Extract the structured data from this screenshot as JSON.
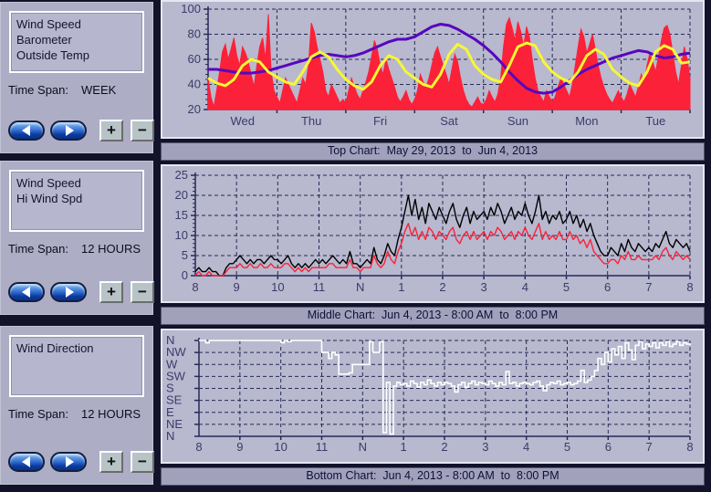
{
  "controls": {
    "plus": "+",
    "minus": "−"
  },
  "panels": [
    {
      "items": [
        "Wind Speed",
        "Barometer",
        "Outside Temp"
      ],
      "time_span_label": "Time Span:",
      "time_span": "WEEK"
    },
    {
      "items": [
        "Wind Speed",
        "Hi Wind Spd"
      ],
      "time_span_label": "Time Span:",
      "time_span": "12 HOURS"
    },
    {
      "items": [
        "Wind Direction"
      ],
      "time_span_label": "Time Span:",
      "time_span": "12 HOURS"
    }
  ],
  "captions": {
    "top": "Top Chart:  May 29, 2013  to  Jun 4, 2013",
    "middle": "Middle Chart:  Jun 4, 2013 - 8:00 AM  to  8:00 PM",
    "bottom": "Bottom Chart:  Jun 4, 2013 - 8:00 AM  to  8:00 PM"
  },
  "colors": {
    "wind_fill": "#fb2138",
    "barometer": "#5806be",
    "outside_temp": "#f7f735",
    "hi_wind": "#000000",
    "wind_line": "#fb2138",
    "wind_direction": "#ffffff",
    "grid": "#29295a",
    "tick_text": "#3b3b6b"
  },
  "chart_data": [
    {
      "type": "area",
      "title": "Top Chart: May 29, 2013 to Jun 4, 2013",
      "x_labels": [
        "Wed",
        "Thu",
        "Fri",
        "Sat",
        "Sun",
        "Mon",
        "Tue"
      ],
      "ylim": [
        20,
        100
      ],
      "y_ticks": [
        20,
        40,
        60,
        80,
        100
      ],
      "y_tick_labels": [
        "20",
        "40",
        "60",
        "80",
        "100"
      ],
      "grid": true,
      "series": [
        {
          "name": "Wind Speed",
          "type": "area",
          "color": "#fb2138",
          "values": [
            45,
            30,
            22,
            35,
            50,
            66,
            72,
            60,
            68,
            77,
            63,
            55,
            70,
            65,
            58,
            48,
            38,
            55,
            70,
            77,
            60,
            96,
            50,
            35,
            30,
            25,
            35,
            45,
            40,
            35,
            30,
            25,
            35,
            45,
            40,
            55,
            89,
            82,
            70,
            60,
            50,
            35,
            30,
            40,
            35,
            30,
            25,
            28,
            25,
            35,
            45,
            38,
            32,
            28,
            35,
            42,
            50,
            62,
            75,
            68,
            55,
            48,
            60,
            52,
            45,
            38,
            30,
            26,
            30,
            35,
            28,
            24,
            28,
            35,
            48,
            42,
            38,
            45,
            55,
            65,
            70,
            62,
            55,
            48,
            40,
            52,
            64,
            58,
            45,
            35,
            28,
            24,
            22,
            26,
            30,
            25,
            24,
            28,
            35,
            30,
            26,
            32,
            45,
            70,
            88,
            93,
            85,
            75,
            90,
            82,
            70,
            86,
            78,
            60,
            45,
            35,
            30,
            26,
            35,
            30,
            26,
            30,
            38,
            45,
            40,
            35,
            30,
            40,
            55,
            70,
            84,
            78,
            65,
            72,
            80,
            68,
            55,
            45,
            38,
            32,
            28,
            25,
            30,
            35,
            30,
            26,
            32,
            40,
            35,
            30,
            38,
            48,
            42,
            55,
            65,
            58,
            50,
            62,
            75,
            85,
            87,
            80,
            65,
            50,
            40,
            55,
            70,
            60,
            45
          ]
        },
        {
          "name": "Barometer",
          "type": "line",
          "color": "#5806be",
          "width": 3,
          "values": [
            52,
            52,
            51,
            50,
            49,
            49,
            50,
            51,
            53,
            55,
            57,
            59,
            61,
            63,
            64,
            63,
            62,
            63,
            65,
            68,
            71,
            74,
            76,
            76,
            78,
            82,
            86,
            88,
            87,
            84,
            80,
            76,
            71,
            65,
            58,
            50,
            43,
            37,
            34,
            33,
            34,
            38,
            43,
            48,
            52,
            55,
            58,
            61,
            63,
            65,
            67,
            66,
            63,
            61,
            62,
            64,
            65
          ]
        },
        {
          "name": "Outside Temp",
          "type": "line",
          "color": "#f7f735",
          "width": 3,
          "values": [
            45,
            41,
            39,
            44,
            55,
            60,
            58,
            50,
            46,
            42,
            40,
            50,
            62,
            66,
            62,
            52,
            44,
            39,
            36,
            42,
            55,
            63,
            60,
            50,
            45,
            40,
            38,
            48,
            64,
            72,
            68,
            55,
            48,
            44,
            42,
            55,
            70,
            73,
            71,
            58,
            50,
            45,
            42,
            50,
            63,
            68,
            64,
            52,
            46,
            41,
            39,
            50,
            66,
            71,
            68,
            57,
            58
          ]
        }
      ]
    },
    {
      "type": "line",
      "title": "Middle Chart: Jun 4, 2013 - 8:00 AM to 8:00 PM",
      "x_labels": [
        "8",
        "9",
        "10",
        "11",
        "N",
        "1",
        "2",
        "3",
        "4",
        "5",
        "6",
        "7",
        "8"
      ],
      "ylim": [
        0,
        25
      ],
      "y_ticks": [
        0,
        5,
        10,
        15,
        20,
        25
      ],
      "y_tick_labels": [
        "0",
        "5",
        "10",
        "15",
        "20",
        "25"
      ],
      "grid": true,
      "series": [
        {
          "name": "Hi Wind Spd",
          "type": "line",
          "color": "#000000",
          "width": 1.4,
          "values": [
            1,
            2,
            1,
            1,
            2,
            1,
            1,
            0,
            0,
            2,
            3,
            3,
            4,
            5,
            4,
            3,
            4,
            3,
            4,
            4,
            3,
            4,
            5,
            4,
            4,
            3,
            4,
            5,
            3,
            2,
            3,
            2,
            3,
            2,
            3,
            4,
            3,
            4,
            3,
            4,
            5,
            4,
            3,
            4,
            3,
            6,
            3,
            3,
            2,
            3,
            4,
            3,
            7,
            4,
            3,
            5,
            8,
            6,
            5,
            9,
            12,
            16,
            20,
            15,
            19,
            14,
            17,
            13,
            18,
            16,
            14,
            17,
            15,
            13,
            16,
            18,
            14,
            12,
            15,
            17,
            13,
            16,
            14,
            15,
            16,
            14,
            17,
            15,
            18,
            16,
            13,
            15,
            17,
            14,
            16,
            15,
            18,
            15,
            13,
            16,
            20,
            14,
            16,
            13,
            15,
            14,
            16,
            13,
            14,
            16,
            13,
            15,
            12,
            14,
            11,
            13,
            10,
            8,
            6,
            5,
            5,
            7,
            6,
            5,
            8,
            6,
            9,
            7,
            6,
            8,
            7,
            6,
            7,
            6,
            8,
            7,
            9,
            11,
            8,
            7,
            9,
            8,
            7,
            8,
            6
          ]
        },
        {
          "name": "Wind Speed",
          "type": "line",
          "color": "#fb2138",
          "width": 1.4,
          "values": [
            0,
            1,
            0,
            0,
            1,
            0,
            0,
            0,
            0,
            1,
            2,
            2,
            2,
            3,
            2,
            2,
            3,
            2,
            2,
            3,
            2,
            2,
            3,
            2,
            2,
            2,
            3,
            3,
            2,
            1,
            2,
            1,
            2,
            1,
            2,
            2,
            2,
            2,
            2,
            3,
            3,
            2,
            2,
            2,
            2,
            4,
            2,
            2,
            1,
            2,
            2,
            2,
            5,
            3,
            2,
            3,
            6,
            4,
            3,
            6,
            8,
            11,
            13,
            10,
            12,
            9,
            11,
            9,
            12,
            11,
            9,
            11,
            10,
            9,
            11,
            12,
            9,
            8,
            10,
            11,
            9,
            11,
            9,
            10,
            11,
            9,
            11,
            10,
            12,
            11,
            9,
            10,
            11,
            9,
            11,
            10,
            12,
            10,
            9,
            11,
            13,
            9,
            11,
            9,
            10,
            9,
            11,
            9,
            9,
            11,
            9,
            10,
            8,
            9,
            7,
            9,
            6,
            5,
            4,
            3,
            3,
            4,
            4,
            3,
            5,
            4,
            6,
            4,
            4,
            5,
            4,
            4,
            4,
            4,
            5,
            4,
            6,
            7,
            5,
            4,
            6,
            5,
            4,
            5,
            4
          ]
        }
      ]
    },
    {
      "type": "line",
      "title": "Bottom Chart: Jun 4, 2013 - 8:00 AM to 8:00 PM",
      "x_labels": [
        "8",
        "9",
        "10",
        "11",
        "N",
        "1",
        "2",
        "3",
        "4",
        "5",
        "6",
        "7",
        "8"
      ],
      "ylim": [
        0,
        8
      ],
      "y_ticks": [
        0,
        1,
        2,
        3,
        4,
        5,
        6,
        7,
        8
      ],
      "y_tick_labels": [
        "N",
        "NE",
        "E",
        "SE",
        "S",
        "SW",
        "W",
        "NW",
        "N"
      ],
      "grid": true,
      "series": [
        {
          "name": "Wind Direction",
          "type": "step",
          "color": "#ffffff",
          "width": 1.6,
          "values": [
            8,
            8,
            7.8,
            8,
            8,
            8,
            8,
            8,
            8,
            8,
            8,
            8,
            8,
            8,
            8,
            8,
            8,
            8,
            8,
            8,
            8,
            8,
            8,
            8,
            7.8,
            8,
            7.9,
            8,
            8,
            8,
            8,
            8,
            8,
            8,
            8,
            8,
            7,
            7,
            6.5,
            7,
            6.8,
            5.2,
            5.2,
            5.2,
            5.3,
            6,
            6,
            6,
            6,
            6,
            7.9,
            7,
            7,
            7.9,
            0.3,
            4.5,
            0.2,
            4.2,
            4.5,
            4.3,
            4.4,
            4.2,
            4.6,
            4.4,
            4.1,
            4.5,
            4.3,
            4.7,
            4.4,
            4.2,
            4.5,
            4.3,
            4.5,
            4.4,
            4.2,
            3.7,
            4.3,
            4.5,
            4.1,
            4.4,
            4.6,
            4.3,
            4.5,
            4.4,
            4.3,
            4.6,
            4.4,
            4.2,
            4.5,
            4.3,
            5.4,
            4.4,
            4.5,
            4.2,
            4.4,
            4.5,
            4.4,
            4.3,
            4.5,
            4.6,
            4.2,
            3.8,
            4.3,
            4.5,
            4.4,
            4.6,
            4.3,
            4.4,
            4.5,
            4.3,
            4.4,
            4.6,
            5.5,
            4.5,
            4.7,
            5.0,
            5.5,
            6.5,
            6.0,
            7.0,
            6.2,
            7.3,
            6.8,
            7.5,
            6.5,
            7.8,
            7.2,
            6.4,
            7.6,
            7.9,
            7.3,
            7.7,
            7.5,
            7.8,
            7.4,
            7.8,
            7.6,
            7.9,
            7.5,
            7.7,
            7.9,
            7.6,
            7.8,
            7.7,
            7.6
          ]
        }
      ]
    }
  ]
}
